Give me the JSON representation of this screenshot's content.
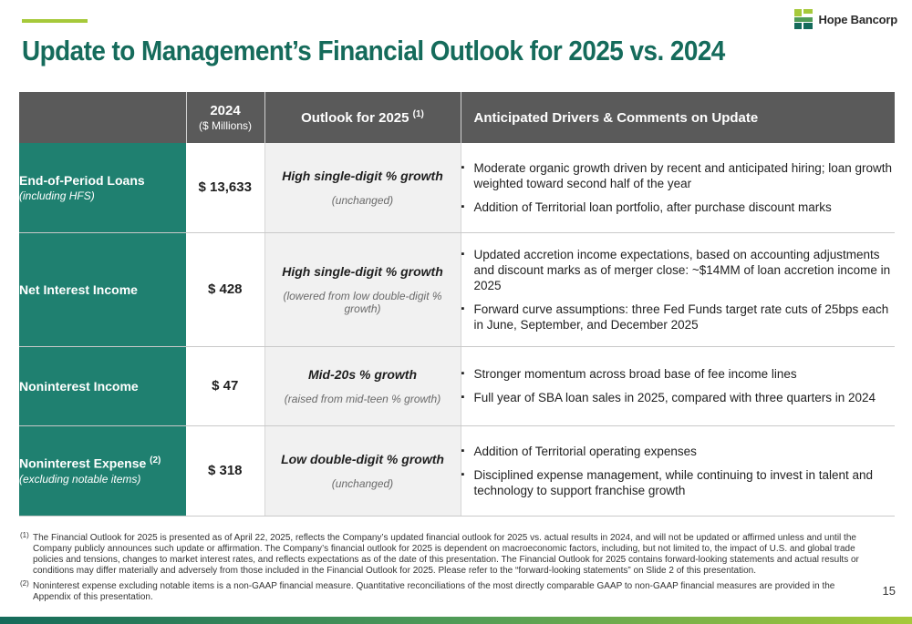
{
  "header": {
    "title": "Update to Management’s Financial Outlook for 2025 vs. 2024",
    "logo_text": "Hope Bancorp"
  },
  "table": {
    "col_year": "2024",
    "col_year_sub": "($ Millions)",
    "col_outlook": "Outlook for 2025",
    "col_outlook_ref": "(1)",
    "col_drivers": "Anticipated Drivers & Comments on Update",
    "rows": [
      {
        "metric": "End-of-Period Loans",
        "metric_ref": "",
        "metric_sub": "(including HFS)",
        "value": "$ 13,633",
        "outlook": "High single-digit % growth",
        "outlook_note": "(unchanged)",
        "drivers": [
          "Moderate organic growth driven by recent and anticipated hiring; loan growth weighted toward second half of the year",
          "Addition of Territorial loan portfolio, after purchase discount marks"
        ]
      },
      {
        "metric": "Net Interest Income",
        "metric_ref": "",
        "metric_sub": "",
        "value": "$ 428",
        "outlook": "High single-digit % growth",
        "outlook_note": "(lowered from low double-digit % growth)",
        "drivers": [
          "Updated accretion income expectations, based on accounting adjustments and discount marks as of merger close: ~$14MM of loan accretion income in 2025",
          "Forward curve assumptions: three Fed Funds target rate cuts of 25bps each in June, September, and December 2025"
        ]
      },
      {
        "metric": "Noninterest Income",
        "metric_ref": "",
        "metric_sub": "",
        "value": "$ 47",
        "outlook": "Mid-20s % growth",
        "outlook_note": "(raised from mid-teen % growth)",
        "drivers": [
          "Stronger momentum across broad base of fee income lines",
          "Full year of SBA loan sales in 2025, compared with three quarters in 2024"
        ]
      },
      {
        "metric": "Noninterest Expense",
        "metric_ref": "(2)",
        "metric_sub": "(excluding notable items)",
        "value": "$ 318",
        "outlook": "Low double-digit % growth",
        "outlook_note": "(unchanged)",
        "drivers": [
          "Addition of Territorial operating expenses",
          "Disciplined expense management, while continuing to invest in talent and technology to support franchise growth"
        ]
      }
    ]
  },
  "footnotes": {
    "fn1_mark": "(1)",
    "fn1": "The Financial Outlook for 2025 is presented as of April 22, 2025, reflects the Company’s updated financial outlook for 2025 vs. actual results in 2024, and will not be updated or affirmed unless and until the Company publicly announces such update or affirmation. The Company’s financial outlook for 2025 is dependent on macroeconomic factors, including, but not limited to, the impact of U.S. and global trade policies and tensions, changes to market interest rates, and reflects expectations as of the date of this presentation. The Financial Outlook for 2025 contains forward-looking statements and actual results or conditions may differ materially and adversely from those included in the Financial Outlook for 2025. Please refer to the “forward-looking statements” on Slide 2 of this presentation.",
    "fn2_mark": "(2)",
    "fn2": "Noninterest expense excluding notable items is a non-GAAP financial measure. Quantitative reconciliations of the most directly comparable GAAP to non-GAAP financial measures are provided in the Appendix of this presentation."
  },
  "page_number": "15",
  "colors": {
    "title": "#156b5b",
    "metric_bg": "#1f8070",
    "header_bg": "#5a5a5a",
    "accent": "#a6c93a"
  },
  "icons": {
    "logo": "hope-bancorp-logo-icon"
  }
}
